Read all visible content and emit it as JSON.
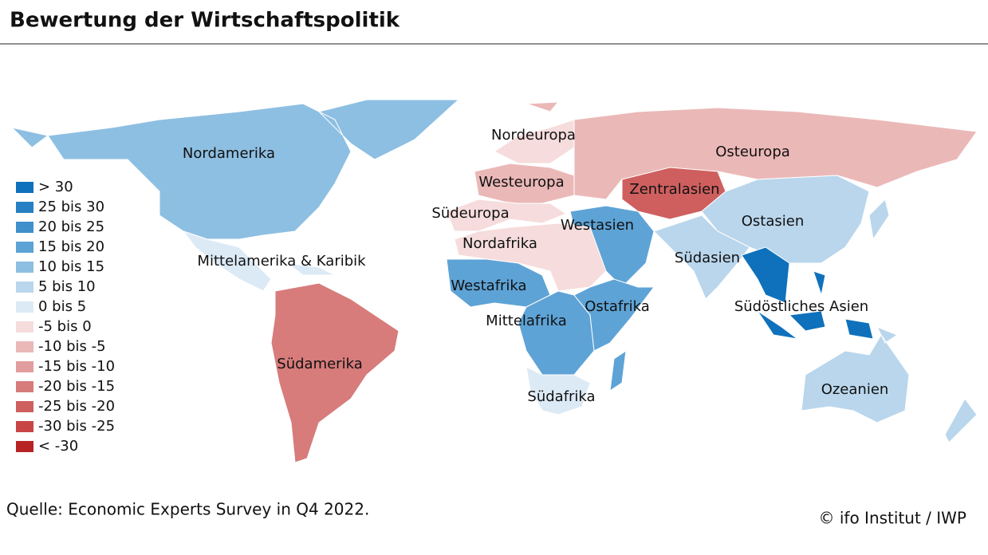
{
  "title": "Bewertung der Wirtschaftspolitik",
  "legend": [
    {
      "label": "> 30",
      "color": "#0f71bc"
    },
    {
      "label": "25 bis 30",
      "color": "#2680c3"
    },
    {
      "label": "20 bis 25",
      "color": "#4090cc"
    },
    {
      "label": "15 bis 20",
      "color": "#5ea3d6"
    },
    {
      "label": "10 bis 15",
      "color": "#8dbfe2"
    },
    {
      "label": "5 bis 10",
      "color": "#b9d6ec"
    },
    {
      "label": "0 bis 5",
      "color": "#dceaf6"
    },
    {
      "label": "-5 bis 0",
      "color": "#f6dcdc"
    },
    {
      "label": "-10 bis -5",
      "color": "#ebb8b8"
    },
    {
      "label": "-15 bis -10",
      "color": "#e29e9e"
    },
    {
      "label": "-20 bis -15",
      "color": "#d77b7b"
    },
    {
      "label": "-25 bis -20",
      "color": "#cf5f5f"
    },
    {
      "label": "-30 bis -25",
      "color": "#c84545"
    },
    {
      "label": "< -30",
      "color": "#b82424"
    }
  ],
  "regions": [
    {
      "name": "Nordamerika",
      "color": "#8dbfe2"
    },
    {
      "name": "Mittelamerika & Karibik",
      "color": "#dceaf6"
    },
    {
      "name": "Südamerika",
      "color": "#d77b7b"
    },
    {
      "name": "Nordeuropa",
      "color": "#f6dcdc"
    },
    {
      "name": "Westeuropa",
      "color": "#ebb8b8"
    },
    {
      "name": "Südeuropa",
      "color": "#f6dcdc"
    },
    {
      "name": "Osteuropa",
      "color": "#ebb8b8"
    },
    {
      "name": "Zentralasien",
      "color": "#cf5f5f"
    },
    {
      "name": "Westasien",
      "color": "#5ea3d6"
    },
    {
      "name": "Ostasien",
      "color": "#b9d6ec"
    },
    {
      "name": "Südasien",
      "color": "#b9d6ec"
    },
    {
      "name": "Südöstliches Asien",
      "color": "#0f71bc"
    },
    {
      "name": "Ozeanien",
      "color": "#b9d6ec"
    },
    {
      "name": "Nordafrika",
      "color": "#f6dcdc"
    },
    {
      "name": "Westafrika",
      "color": "#5ea3d6"
    },
    {
      "name": "Mittelafrika",
      "color": "#5ea3d6"
    },
    {
      "name": "Ostafrika",
      "color": "#5ea3d6"
    },
    {
      "name": "Südafrika",
      "color": "#dceaf6"
    }
  ],
  "source": "Quelle: Economic Experts Survey in Q4 2022.",
  "copyright": "© ifo Institut / IWP"
}
